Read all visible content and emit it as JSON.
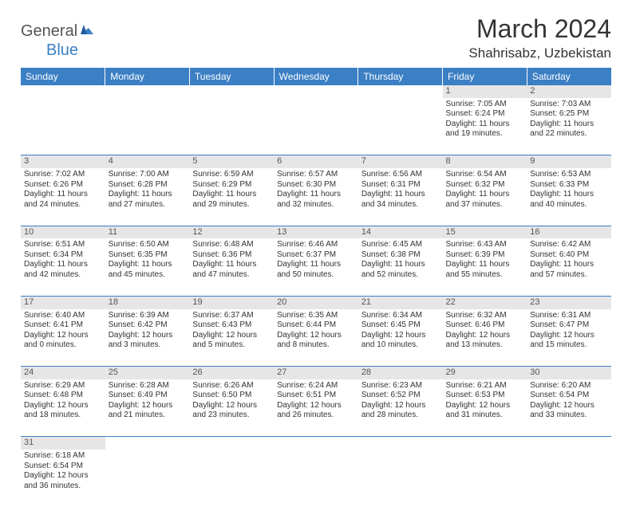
{
  "logo": {
    "part1": "General",
    "part2": "Blue"
  },
  "title": "March 2024",
  "location": "Shahrisabz, Uzbekistan",
  "colors": {
    "header_bg": "#3b7fc4",
    "header_text": "#ffffff",
    "daynum_bg": "#e6e6e6",
    "cell_border": "#3b7fc4",
    "logo_gray": "#555555",
    "logo_blue": "#3b7fc4"
  },
  "day_headers": [
    "Sunday",
    "Monday",
    "Tuesday",
    "Wednesday",
    "Thursday",
    "Friday",
    "Saturday"
  ],
  "weeks": [
    {
      "nums": [
        "",
        "",
        "",
        "",
        "",
        "1",
        "2"
      ],
      "cells": [
        null,
        null,
        null,
        null,
        null,
        {
          "sr": "Sunrise: 7:05 AM",
          "ss": "Sunset: 6:24 PM",
          "d1": "Daylight: 11 hours",
          "d2": "and 19 minutes."
        },
        {
          "sr": "Sunrise: 7:03 AM",
          "ss": "Sunset: 6:25 PM",
          "d1": "Daylight: 11 hours",
          "d2": "and 22 minutes."
        }
      ]
    },
    {
      "nums": [
        "3",
        "4",
        "5",
        "6",
        "7",
        "8",
        "9"
      ],
      "cells": [
        {
          "sr": "Sunrise: 7:02 AM",
          "ss": "Sunset: 6:26 PM",
          "d1": "Daylight: 11 hours",
          "d2": "and 24 minutes."
        },
        {
          "sr": "Sunrise: 7:00 AM",
          "ss": "Sunset: 6:28 PM",
          "d1": "Daylight: 11 hours",
          "d2": "and 27 minutes."
        },
        {
          "sr": "Sunrise: 6:59 AM",
          "ss": "Sunset: 6:29 PM",
          "d1": "Daylight: 11 hours",
          "d2": "and 29 minutes."
        },
        {
          "sr": "Sunrise: 6:57 AM",
          "ss": "Sunset: 6:30 PM",
          "d1": "Daylight: 11 hours",
          "d2": "and 32 minutes."
        },
        {
          "sr": "Sunrise: 6:56 AM",
          "ss": "Sunset: 6:31 PM",
          "d1": "Daylight: 11 hours",
          "d2": "and 34 minutes."
        },
        {
          "sr": "Sunrise: 6:54 AM",
          "ss": "Sunset: 6:32 PM",
          "d1": "Daylight: 11 hours",
          "d2": "and 37 minutes."
        },
        {
          "sr": "Sunrise: 6:53 AM",
          "ss": "Sunset: 6:33 PM",
          "d1": "Daylight: 11 hours",
          "d2": "and 40 minutes."
        }
      ]
    },
    {
      "nums": [
        "10",
        "11",
        "12",
        "13",
        "14",
        "15",
        "16"
      ],
      "cells": [
        {
          "sr": "Sunrise: 6:51 AM",
          "ss": "Sunset: 6:34 PM",
          "d1": "Daylight: 11 hours",
          "d2": "and 42 minutes."
        },
        {
          "sr": "Sunrise: 6:50 AM",
          "ss": "Sunset: 6:35 PM",
          "d1": "Daylight: 11 hours",
          "d2": "and 45 minutes."
        },
        {
          "sr": "Sunrise: 6:48 AM",
          "ss": "Sunset: 6:36 PM",
          "d1": "Daylight: 11 hours",
          "d2": "and 47 minutes."
        },
        {
          "sr": "Sunrise: 6:46 AM",
          "ss": "Sunset: 6:37 PM",
          "d1": "Daylight: 11 hours",
          "d2": "and 50 minutes."
        },
        {
          "sr": "Sunrise: 6:45 AM",
          "ss": "Sunset: 6:38 PM",
          "d1": "Daylight: 11 hours",
          "d2": "and 52 minutes."
        },
        {
          "sr": "Sunrise: 6:43 AM",
          "ss": "Sunset: 6:39 PM",
          "d1": "Daylight: 11 hours",
          "d2": "and 55 minutes."
        },
        {
          "sr": "Sunrise: 6:42 AM",
          "ss": "Sunset: 6:40 PM",
          "d1": "Daylight: 11 hours",
          "d2": "and 57 minutes."
        }
      ]
    },
    {
      "nums": [
        "17",
        "18",
        "19",
        "20",
        "21",
        "22",
        "23"
      ],
      "cells": [
        {
          "sr": "Sunrise: 6:40 AM",
          "ss": "Sunset: 6:41 PM",
          "d1": "Daylight: 12 hours",
          "d2": "and 0 minutes."
        },
        {
          "sr": "Sunrise: 6:39 AM",
          "ss": "Sunset: 6:42 PM",
          "d1": "Daylight: 12 hours",
          "d2": "and 3 minutes."
        },
        {
          "sr": "Sunrise: 6:37 AM",
          "ss": "Sunset: 6:43 PM",
          "d1": "Daylight: 12 hours",
          "d2": "and 5 minutes."
        },
        {
          "sr": "Sunrise: 6:35 AM",
          "ss": "Sunset: 6:44 PM",
          "d1": "Daylight: 12 hours",
          "d2": "and 8 minutes."
        },
        {
          "sr": "Sunrise: 6:34 AM",
          "ss": "Sunset: 6:45 PM",
          "d1": "Daylight: 12 hours",
          "d2": "and 10 minutes."
        },
        {
          "sr": "Sunrise: 6:32 AM",
          "ss": "Sunset: 6:46 PM",
          "d1": "Daylight: 12 hours",
          "d2": "and 13 minutes."
        },
        {
          "sr": "Sunrise: 6:31 AM",
          "ss": "Sunset: 6:47 PM",
          "d1": "Daylight: 12 hours",
          "d2": "and 15 minutes."
        }
      ]
    },
    {
      "nums": [
        "24",
        "25",
        "26",
        "27",
        "28",
        "29",
        "30"
      ],
      "cells": [
        {
          "sr": "Sunrise: 6:29 AM",
          "ss": "Sunset: 6:48 PM",
          "d1": "Daylight: 12 hours",
          "d2": "and 18 minutes."
        },
        {
          "sr": "Sunrise: 6:28 AM",
          "ss": "Sunset: 6:49 PM",
          "d1": "Daylight: 12 hours",
          "d2": "and 21 minutes."
        },
        {
          "sr": "Sunrise: 6:26 AM",
          "ss": "Sunset: 6:50 PM",
          "d1": "Daylight: 12 hours",
          "d2": "and 23 minutes."
        },
        {
          "sr": "Sunrise: 6:24 AM",
          "ss": "Sunset: 6:51 PM",
          "d1": "Daylight: 12 hours",
          "d2": "and 26 minutes."
        },
        {
          "sr": "Sunrise: 6:23 AM",
          "ss": "Sunset: 6:52 PM",
          "d1": "Daylight: 12 hours",
          "d2": "and 28 minutes."
        },
        {
          "sr": "Sunrise: 6:21 AM",
          "ss": "Sunset: 6:53 PM",
          "d1": "Daylight: 12 hours",
          "d2": "and 31 minutes."
        },
        {
          "sr": "Sunrise: 6:20 AM",
          "ss": "Sunset: 6:54 PM",
          "d1": "Daylight: 12 hours",
          "d2": "and 33 minutes."
        }
      ]
    },
    {
      "nums": [
        "31",
        "",
        "",
        "",
        "",
        "",
        ""
      ],
      "cells": [
        {
          "sr": "Sunrise: 6:18 AM",
          "ss": "Sunset: 6:54 PM",
          "d1": "Daylight: 12 hours",
          "d2": "and 36 minutes."
        },
        null,
        null,
        null,
        null,
        null,
        null
      ]
    }
  ]
}
